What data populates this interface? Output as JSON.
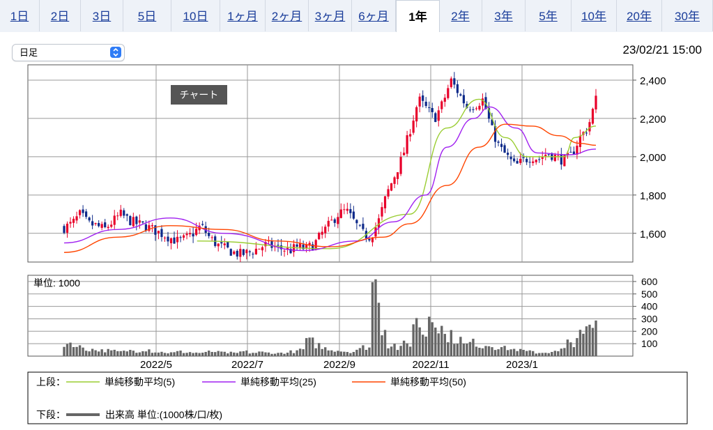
{
  "tabs": [
    {
      "label": "1日",
      "active": false
    },
    {
      "label": "2日",
      "active": false
    },
    {
      "label": "3日",
      "active": false
    },
    {
      "label": "5日",
      "active": false
    },
    {
      "label": "10日",
      "active": false
    },
    {
      "label": "1ヶ月",
      "active": false
    },
    {
      "label": "2ヶ月",
      "active": false
    },
    {
      "label": "3ヶ月",
      "active": false
    },
    {
      "label": "6ヶ月",
      "active": false
    },
    {
      "label": "1年",
      "active": true
    },
    {
      "label": "2年",
      "active": false
    },
    {
      "label": "3年",
      "active": false
    },
    {
      "label": "5年",
      "active": false
    },
    {
      "label": "10年",
      "active": false
    },
    {
      "label": "20年",
      "active": false
    },
    {
      "label": "30年",
      "active": false
    }
  ],
  "select": {
    "value": "日足"
  },
  "datetime": "23/02/21 15:00",
  "tooltip": "チャート",
  "colors": {
    "up": "#e8002a",
    "down": "#0e2a8a",
    "sma5": "#9acd32",
    "sma25": "#a020f0",
    "sma50": "#ff4500",
    "volume": "#666666",
    "grid": "#999999",
    "tab_link": "#1a3d9a"
  },
  "chart_data": {
    "type": "candlestick",
    "price": {
      "ylim": [
        1450,
        2480
      ],
      "yticks": [
        {
          "value": 1600,
          "label": "1,600"
        },
        {
          "value": 1800,
          "label": "1,800"
        },
        {
          "value": 2000,
          "label": "2,000"
        },
        {
          "value": 2200,
          "label": "2,200"
        },
        {
          "value": 2400,
          "label": "2,400"
        }
      ],
      "close_path": [
        1630,
        1650,
        1700,
        1650,
        1640,
        1620,
        1660,
        1700,
        1670,
        1650,
        1640,
        1620,
        1600,
        1580,
        1560,
        1570,
        1600,
        1640,
        1580,
        1540,
        1520,
        1500,
        1490,
        1500,
        1520,
        1540,
        1530,
        1520,
        1510,
        1530,
        1520,
        1540,
        1600,
        1650,
        1700,
        1720,
        1660,
        1600,
        1580,
        1660,
        1800,
        1900,
        2000,
        2150,
        2300,
        2250,
        2200,
        2280,
        2400,
        2330,
        2260,
        2270,
        2300,
        2150,
        2050,
        2000,
        1950,
        1980,
        2000,
        1990,
        2020,
        2000,
        1980,
        2010,
        2100,
        2150,
        2300
      ],
      "sma": [
        {
          "name": "単純移動平均(5)",
          "color": "#9acd32",
          "points": [
            [
              0.25,
              1560
            ],
            [
              0.5,
              1520
            ],
            [
              0.65,
              1700
            ],
            [
              0.72,
              2150
            ],
            [
              0.78,
              2300
            ],
            [
              0.83,
              2100
            ],
            [
              0.87,
              2000
            ],
            [
              0.94,
              2000
            ],
            [
              0.96,
              2100
            ],
            [
              1.0,
              2160
            ]
          ]
        },
        {
          "name": "単純移動平均(25)",
          "color": "#a020f0",
          "points": [
            [
              0,
              1550
            ],
            [
              0.1,
              1620
            ],
            [
              0.2,
              1680
            ],
            [
              0.3,
              1600
            ],
            [
              0.45,
              1510
            ],
            [
              0.55,
              1560
            ],
            [
              0.62,
              1660
            ],
            [
              0.68,
              1800
            ],
            [
              0.72,
              2050
            ],
            [
              0.77,
              2200
            ],
            [
              0.8,
              2260
            ],
            [
              0.85,
              2150
            ],
            [
              0.89,
              2020
            ],
            [
              0.95,
              2010
            ],
            [
              1.0,
              2040
            ]
          ]
        },
        {
          "name": "単純移動平均(50)",
          "color": "#ff4500",
          "points": [
            [
              0,
              1500
            ],
            [
              0.1,
              1580
            ],
            [
              0.2,
              1640
            ],
            [
              0.3,
              1620
            ],
            [
              0.4,
              1560
            ],
            [
              0.5,
              1530
            ],
            [
              0.6,
              1580
            ],
            [
              0.65,
              1650
            ],
            [
              0.72,
              1850
            ],
            [
              0.78,
              2050
            ],
            [
              0.83,
              2170
            ],
            [
              0.88,
              2160
            ],
            [
              0.93,
              2110
            ],
            [
              0.97,
              2070
            ],
            [
              1.0,
              2060
            ]
          ]
        }
      ]
    },
    "volume": {
      "unit_label": "単位: 1000",
      "ylim": [
        0,
        650
      ],
      "yticks": [
        {
          "value": 100,
          "label": "100"
        },
        {
          "value": 200,
          "label": "200"
        },
        {
          "value": 300,
          "label": "300"
        },
        {
          "value": 400,
          "label": "400"
        },
        {
          "value": 500,
          "label": "500"
        },
        {
          "value": 600,
          "label": "600"
        }
      ],
      "values": [
        110,
        120,
        80,
        60,
        55,
        50,
        45,
        40,
        50,
        45,
        60,
        40,
        35,
        30,
        40,
        35,
        30,
        30,
        40,
        35,
        30,
        25,
        40,
        30,
        35,
        30,
        25,
        30,
        40,
        60,
        130,
        100,
        70,
        55,
        45,
        40,
        60,
        80,
        630,
        250,
        100,
        70,
        110,
        300,
        200,
        380,
        250,
        180,
        150,
        100,
        120,
        90,
        100,
        80,
        70,
        60,
        50,
        40,
        30,
        35,
        40,
        60,
        120,
        180,
        230,
        270
      ]
    },
    "x_labels": [
      "2022/5",
      "2022/7",
      "2022/9",
      "2022/11",
      "2023/1"
    ]
  },
  "legend": {
    "upper_label": "上段：",
    "lower_label": "下段：",
    "items": [
      {
        "label": "単純移動平均(5)",
        "color": "#9acd32"
      },
      {
        "label": "単純移動平均(25)",
        "color": "#a020f0"
      },
      {
        "label": "単純移動平均(50)",
        "color": "#ff4500"
      }
    ],
    "volume_label": "出来高 単位:(1000株/口/枚)"
  }
}
